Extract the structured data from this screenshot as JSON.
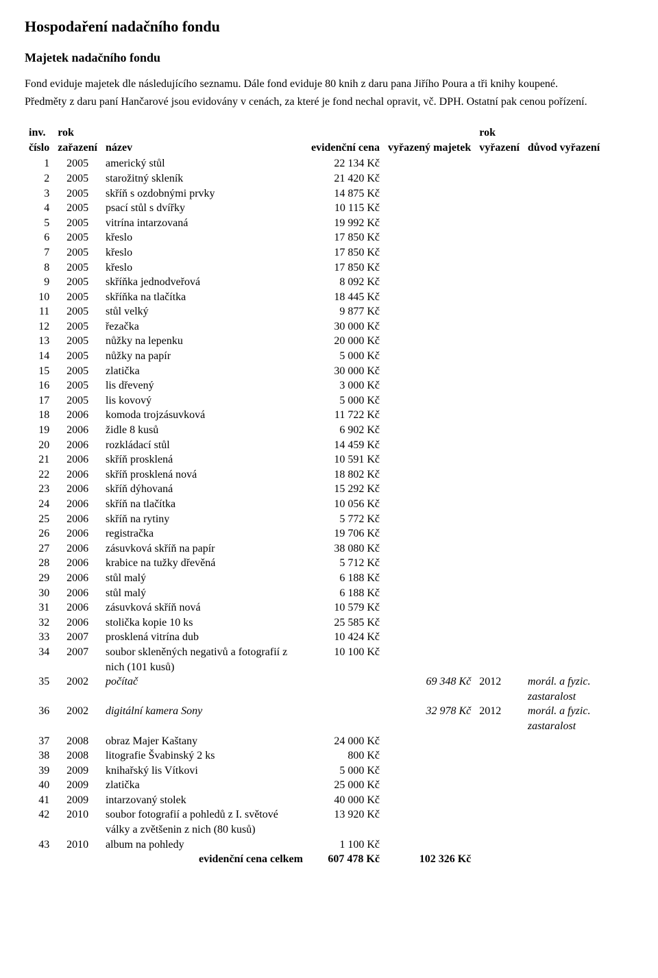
{
  "heading1": "Hospodaření nadačního fondu",
  "heading2": "Majetek nadačního fondu",
  "intro": {
    "p1": "Fond eviduje majetek dle následujícího seznamu. Dále fond eviduje 80 knih z daru pana Jiřího Poura a tři knihy koupené.",
    "p2": "Předměty z daru paní Hančarové jsou evidovány v cenách, za které je fond nechal opravit, vč. DPH. Ostatní pak cenou pořízení."
  },
  "table": {
    "headers": {
      "inv_cislo": "inv. číslo",
      "rok_zarazeni": "rok zařazení",
      "nazev": "název",
      "evidencni_cena": "evidenční cena",
      "vyrazeny_majetek": "vyřazený majetek",
      "rok_vyrazeni": "rok vyřazení",
      "duvod_vyrazeni": "důvod vyřazení"
    },
    "rows": [
      {
        "n": "1",
        "y": "2005",
        "name": "americký stůl",
        "price": "22 134 Kč",
        "disp": "",
        "dy": "",
        "reason": "",
        "italic": false
      },
      {
        "n": "2",
        "y": "2005",
        "name": "starožitný skleník",
        "price": "21 420 Kč",
        "disp": "",
        "dy": "",
        "reason": "",
        "italic": false
      },
      {
        "n": "3",
        "y": "2005",
        "name": "skříň s ozdobnými prvky",
        "price": "14 875 Kč",
        "disp": "",
        "dy": "",
        "reason": "",
        "italic": false
      },
      {
        "n": "4",
        "y": "2005",
        "name": "psací stůl s dvířky",
        "price": "10 115 Kč",
        "disp": "",
        "dy": "",
        "reason": "",
        "italic": false
      },
      {
        "n": "5",
        "y": "2005",
        "name": "vitrína intarzovaná",
        "price": "19 992 Kč",
        "disp": "",
        "dy": "",
        "reason": "",
        "italic": false
      },
      {
        "n": "6",
        "y": "2005",
        "name": "křeslo",
        "price": "17 850 Kč",
        "disp": "",
        "dy": "",
        "reason": "",
        "italic": false
      },
      {
        "n": "7",
        "y": "2005",
        "name": "křeslo",
        "price": "17 850 Kč",
        "disp": "",
        "dy": "",
        "reason": "",
        "italic": false
      },
      {
        "n": "8",
        "y": "2005",
        "name": "křeslo",
        "price": "17 850 Kč",
        "disp": "",
        "dy": "",
        "reason": "",
        "italic": false
      },
      {
        "n": "9",
        "y": "2005",
        "name": "skříňka jednodveřová",
        "price": "8 092 Kč",
        "disp": "",
        "dy": "",
        "reason": "",
        "italic": false
      },
      {
        "n": "10",
        "y": "2005",
        "name": "skříňka na tlačítka",
        "price": "18 445 Kč",
        "disp": "",
        "dy": "",
        "reason": "",
        "italic": false
      },
      {
        "n": "11",
        "y": "2005",
        "name": "stůl velký",
        "price": "9 877 Kč",
        "disp": "",
        "dy": "",
        "reason": "",
        "italic": false
      },
      {
        "n": "12",
        "y": "2005",
        "name": "řezačka",
        "price": "30 000 Kč",
        "disp": "",
        "dy": "",
        "reason": "",
        "italic": false
      },
      {
        "n": "13",
        "y": "2005",
        "name": "nůžky na lepenku",
        "price": "20 000 Kč",
        "disp": "",
        "dy": "",
        "reason": "",
        "italic": false
      },
      {
        "n": "14",
        "y": "2005",
        "name": "nůžky na papír",
        "price": "5 000 Kč",
        "disp": "",
        "dy": "",
        "reason": "",
        "italic": false
      },
      {
        "n": "15",
        "y": "2005",
        "name": "zlatička",
        "price": "30 000 Kč",
        "disp": "",
        "dy": "",
        "reason": "",
        "italic": false
      },
      {
        "n": "16",
        "y": "2005",
        "name": "lis dřevený",
        "price": "3 000 Kč",
        "disp": "",
        "dy": "",
        "reason": "",
        "italic": false
      },
      {
        "n": "17",
        "y": "2005",
        "name": "lis kovový",
        "price": "5 000 Kč",
        "disp": "",
        "dy": "",
        "reason": "",
        "italic": false
      },
      {
        "n": "18",
        "y": "2006",
        "name": "komoda trojzásuvková",
        "price": "11 722 Kč",
        "disp": "",
        "dy": "",
        "reason": "",
        "italic": false
      },
      {
        "n": "19",
        "y": "2006",
        "name": "židle 8 kusů",
        "price": "6 902 Kč",
        "disp": "",
        "dy": "",
        "reason": "",
        "italic": false
      },
      {
        "n": "20",
        "y": "2006",
        "name": "rozkládací stůl",
        "price": "14 459 Kč",
        "disp": "",
        "dy": "",
        "reason": "",
        "italic": false
      },
      {
        "n": "21",
        "y": "2006",
        "name": "skříň prosklená",
        "price": "10 591 Kč",
        "disp": "",
        "dy": "",
        "reason": "",
        "italic": false
      },
      {
        "n": "22",
        "y": "2006",
        "name": "skříň prosklená nová",
        "price": "18 802 Kč",
        "disp": "",
        "dy": "",
        "reason": "",
        "italic": false
      },
      {
        "n": "23",
        "y": "2006",
        "name": "skříň dýhovaná",
        "price": "15 292 Kč",
        "disp": "",
        "dy": "",
        "reason": "",
        "italic": false
      },
      {
        "n": "24",
        "y": "2006",
        "name": "skříň na tlačítka",
        "price": "10 056 Kč",
        "disp": "",
        "dy": "",
        "reason": "",
        "italic": false
      },
      {
        "n": "25",
        "y": "2006",
        "name": "skříň na rytiny",
        "price": "5 772 Kč",
        "disp": "",
        "dy": "",
        "reason": "",
        "italic": false
      },
      {
        "n": "26",
        "y": "2006",
        "name": "registračka",
        "price": "19 706 Kč",
        "disp": "",
        "dy": "",
        "reason": "",
        "italic": false
      },
      {
        "n": "27",
        "y": "2006",
        "name": "zásuvková skříň na papír",
        "price": "38 080 Kč",
        "disp": "",
        "dy": "",
        "reason": "",
        "italic": false
      },
      {
        "n": "28",
        "y": "2006",
        "name": "krabice na tužky dřevěná",
        "price": "5 712 Kč",
        "disp": "",
        "dy": "",
        "reason": "",
        "italic": false
      },
      {
        "n": "29",
        "y": "2006",
        "name": "stůl malý",
        "price": "6 188 Kč",
        "disp": "",
        "dy": "",
        "reason": "",
        "italic": false
      },
      {
        "n": "30",
        "y": "2006",
        "name": "stůl malý",
        "price": "6 188 Kč",
        "disp": "",
        "dy": "",
        "reason": "",
        "italic": false
      },
      {
        "n": "31",
        "y": "2006",
        "name": "zásuvková skříň nová",
        "price": "10 579 Kč",
        "disp": "",
        "dy": "",
        "reason": "",
        "italic": false
      },
      {
        "n": "32",
        "y": "2006",
        "name": "stolička kopie 10 ks",
        "price": "25 585 Kč",
        "disp": "",
        "dy": "",
        "reason": "",
        "italic": false
      },
      {
        "n": "33",
        "y": "2007",
        "name": "prosklená vitrína dub",
        "price": "10 424 Kč",
        "disp": "",
        "dy": "",
        "reason": "",
        "italic": false
      },
      {
        "n": "34",
        "y": "2007",
        "name": "soubor skleněných negativů a fotografií z nich (101 kusů)",
        "price": "10 100 Kč",
        "disp": "",
        "dy": "",
        "reason": "",
        "italic": false
      },
      {
        "n": "35",
        "y": "2002",
        "name": "počítač",
        "price": "",
        "disp": "69 348 Kč",
        "dy": "2012",
        "reason": "morál. a fyzic. zastaralost",
        "italic": true
      },
      {
        "n": "36",
        "y": "2002",
        "name": "digitální kamera Sony",
        "price": "",
        "disp": "32 978 Kč",
        "dy": "2012",
        "reason": "morál. a fyzic. zastaralost",
        "italic": true
      },
      {
        "n": "37",
        "y": "2008",
        "name": "obraz Majer Kaštany",
        "price": "24 000 Kč",
        "disp": "",
        "dy": "",
        "reason": "",
        "italic": false
      },
      {
        "n": "38",
        "y": "2008",
        "name": "litografie Švabinský 2 ks",
        "price": "800 Kč",
        "disp": "",
        "dy": "",
        "reason": "",
        "italic": false
      },
      {
        "n": "39",
        "y": "2009",
        "name": "knihařský lis Vítkovi",
        "price": "5 000 Kč",
        "disp": "",
        "dy": "",
        "reason": "",
        "italic": false
      },
      {
        "n": "40",
        "y": "2009",
        "name": "zlatička",
        "price": "25 000 Kč",
        "disp": "",
        "dy": "",
        "reason": "",
        "italic": false
      },
      {
        "n": "41",
        "y": "2009",
        "name": "intarzovaný stolek",
        "price": "40 000 Kč",
        "disp": "",
        "dy": "",
        "reason": "",
        "italic": false
      },
      {
        "n": "42",
        "y": "2010",
        "name": "soubor fotografií a pohledů z I. světové války a zvětšenin z nich (80 kusů)",
        "price": "13 920 Kč",
        "disp": "",
        "dy": "",
        "reason": "",
        "italic": false
      },
      {
        "n": "43",
        "y": "2010",
        "name": "album na pohledy",
        "price": "1 100 Kč",
        "disp": "",
        "dy": "",
        "reason": "",
        "italic": false
      }
    ],
    "total": {
      "label": "evidenční cena celkem",
      "price": "607 478 Kč",
      "disp": "102 326 Kč"
    }
  }
}
